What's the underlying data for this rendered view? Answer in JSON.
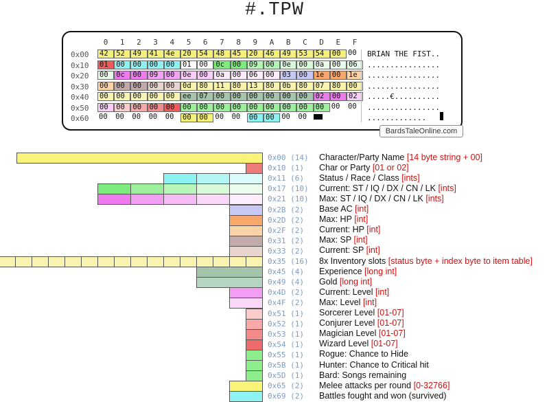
{
  "title": "#.TPW",
  "hex": {
    "col_headers": [
      "0",
      "1",
      "2",
      "3",
      "4",
      "5",
      "6",
      "7",
      "8",
      "9",
      "A",
      "B",
      "C",
      "D",
      "E",
      "F"
    ],
    "rows": [
      {
        "label": "0x00",
        "bytes": [
          "42",
          "52",
          "49",
          "41",
          "4e",
          "20",
          "54",
          "48",
          "45",
          "20",
          "46",
          "49",
          "53",
          "54",
          "00",
          "00"
        ],
        "ascii": "BRIAN THE FIST.."
      },
      {
        "label": "0x10",
        "bytes": [
          "01",
          "00",
          "00",
          "00",
          "00",
          "01",
          "00",
          "0c",
          "00",
          "09",
          "00",
          "0e",
          "00",
          "0a",
          "00",
          "06"
        ],
        "ascii": "................"
      },
      {
        "label": "0x20",
        "bytes": [
          "00",
          "0c",
          "00",
          "09",
          "00",
          "0e",
          "00",
          "0a",
          "00",
          "06",
          "00",
          "03",
          "00",
          "1e",
          "00",
          "1e"
        ],
        "ascii": "................"
      },
      {
        "label": "0x30",
        "bytes": [
          "00",
          "00",
          "00",
          "00",
          "00",
          "0d",
          "80",
          "11",
          "80",
          "13",
          "80",
          "0b",
          "80",
          "07",
          "80",
          "00"
        ],
        "ascii": "................"
      },
      {
        "label": "0x40",
        "bytes": [
          "00",
          "00",
          "00",
          "00",
          "00",
          "ee",
          "07",
          "00",
          "00",
          "00",
          "00",
          "00",
          "00",
          "02",
          "00",
          "02"
        ],
        "ascii": ".....€.........."
      },
      {
        "label": "0x50",
        "bytes": [
          "00",
          "00",
          "00",
          "00",
          "00",
          "00",
          "00",
          "00",
          "00",
          "00",
          "00",
          "00",
          "00",
          "00",
          "00",
          "00"
        ],
        "ascii": "................"
      },
      {
        "label": "0x60",
        "bytes": [
          "00",
          "00",
          "00",
          "00",
          "00",
          "00",
          "00",
          "00",
          "00",
          "00",
          "00",
          "00",
          "00"
        ],
        "ascii": "............."
      }
    ],
    "byte_colors": [
      [
        "#f5f07a",
        "#f5f07a",
        "#f5f07a",
        "#f5f07a",
        "#f5f07a",
        "#f5f07a",
        "#f5f07a",
        "#f5f07a",
        "#f5f07a",
        "#f5f07a",
        "#f5f07a",
        "#f5f07a",
        "#f5f07a",
        "#f5f07a",
        "#f5f07a",
        ""
      ],
      [
        "#ef5a5a",
        "#8ff2f2",
        "#8ff2f2",
        "#8ff2f2",
        "#8ff2f2",
        "#ffffff",
        "#ffffff",
        "#7dea7d",
        "#7dea7d",
        "#b3f3b3",
        "#b3f3b3",
        "#d8f8d8",
        "#d8f8d8",
        "#ebfbeb",
        "#ebfbeb",
        "#ebfbeb"
      ],
      [
        "#ebfbeb",
        "#ee7bee",
        "#ee7bee",
        "#f4a4f4",
        "#f4a4f4",
        "#f8cef8",
        "#f8cef8",
        "#fcecfc",
        "#fcecfc",
        "#fcecfc",
        "#fcecfc",
        "#c8c8f5",
        "#c8c8f5",
        "#f8a86b",
        "#f8a86b",
        "#fbd3a8"
      ],
      [
        "#fbd3a8",
        "#c3aaaa",
        "#c3aaaa",
        "#e8d5cf",
        "#e8d5cf",
        "#f8f4b0",
        "#f8f4b0",
        "#f8f4b0",
        "#f8f4b0",
        "#f8f4b0",
        "#f8f4b0",
        "#f8f4b0",
        "#f8f4b0",
        "#f8f4b0",
        "#f8f4b0",
        "#f8f4b0"
      ],
      [
        "#f8f4b0",
        "#f8f4b0",
        "#f8f4b0",
        "#f8f4b0",
        "#f8f4b0",
        "#a4c4ac",
        "#a4c4ac",
        "#a4c4ac",
        "#a4c4ac",
        "#a4c4ac",
        "#a4c4ac",
        "#a4c4ac",
        "#a4c4ac",
        "#ee7bee",
        "#ee7bee",
        "#f8cef8"
      ],
      [
        "#f8cef8",
        "#fccbcb",
        "#f8a8a8",
        "#f48b8b",
        "#ef5a5a",
        "#9cf09c",
        "#9cf09c",
        "#9cf09c",
        "#9cf09c",
        "#9cf09c",
        "#9cf09c",
        "#9cf09c",
        "#9cf09c",
        "#9cf09c",
        "",
        ""
      ],
      [
        "",
        "",
        "",
        "",
        "",
        "#f5f07a",
        "#f5f07a",
        "",
        "",
        "#8ff2f2",
        "#8ff2f2",
        "",
        ""
      ]
    ],
    "site_badge": "BardsTaleOnline.com"
  },
  "fields": [
    {
      "offset": "0x00",
      "length": "(14)",
      "label": "Character/Party Name",
      "tag": "[14 byte string + 00]",
      "color": "#f8f47a",
      "cells": 1,
      "cell_width": 358
    },
    {
      "offset": "0x10",
      "length": "(1)",
      "label": "Char or Party",
      "tag": "[01 or 02]",
      "color": "#ef7a7a",
      "cells": 1,
      "cell_width": 24
    },
    {
      "offset": "0x11",
      "length": "(6)",
      "label": "Status / Race / Class",
      "tag": "[ints]",
      "color": "#8ff2f2",
      "cells": 3,
      "cell_width": 48,
      "colors": [
        "#8ff2f2",
        "#b4f6f6",
        "#dcfcfc"
      ]
    },
    {
      "offset": "0x17",
      "length": "(10)",
      "label": "Current: ST / IQ / DX / CN / LK",
      "tag": "[ints]",
      "color": "#7dea7d",
      "cells": 5,
      "cell_width": 48,
      "colors": [
        "#7dea7d",
        "#9cf09c",
        "#b8f5b8",
        "#d8f9d8",
        "#ecfcec"
      ]
    },
    {
      "offset": "0x21",
      "length": "(10)",
      "label": "Max: ST / IQ / DX / CN / LK",
      "tag": "[ints]",
      "color": "#ee7bee",
      "cells": 5,
      "cell_width": 48,
      "colors": [
        "#ee7bee",
        "#f29ef2",
        "#f6bcf6",
        "#f9d7f9",
        "#fcecfc"
      ]
    },
    {
      "offset": "0x2B",
      "length": "(2)",
      "label": "Base AC",
      "tag": "[int]",
      "color": "#c8c8f5",
      "cells": 1,
      "cell_width": 48
    },
    {
      "offset": "0x2D",
      "length": "(2)",
      "label": "Max: HP",
      "tag": "[int]",
      "color": "#f8a86b",
      "cells": 1,
      "cell_width": 48
    },
    {
      "offset": "0x2F",
      "length": "(2)",
      "label": "Current: HP",
      "tag": "[int]",
      "color": "#fbd3a8",
      "cells": 1,
      "cell_width": 48
    },
    {
      "offset": "0x31",
      "length": "(2)",
      "label": "Max: SP",
      "tag": "[int]",
      "color": "#c3aaaa",
      "cells": 1,
      "cell_width": 48
    },
    {
      "offset": "0x33",
      "length": "(2)",
      "label": "Current: SP",
      "tag": "[int]",
      "color": "#e8d5cf",
      "cells": 1,
      "cell_width": 48
    },
    {
      "offset": "0x35",
      "length": "(16)",
      "label": "8x Inventory slots",
      "tag": "[status byte + index byte to item table]",
      "color": "#f8f4b0",
      "cells": 16,
      "cell_width": 24
    },
    {
      "offset": "0x45",
      "length": "(4)",
      "label": "Experience",
      "tag": "[long int]",
      "color": "#a4c4ac",
      "cells": 1,
      "cell_width": 96
    },
    {
      "offset": "0x49",
      "length": "(4)",
      "label": "Gold",
      "tag": "[long int]",
      "color": "#b6d4c2",
      "cells": 1,
      "cell_width": 96
    },
    {
      "offset": "0x4D",
      "length": "(2)",
      "label": "Current: Level",
      "tag": "[int]",
      "color": "#f29ef2",
      "cells": 1,
      "cell_width": 48
    },
    {
      "offset": "0x4F",
      "length": "(2)",
      "label": "Max: Level",
      "tag": "[int]",
      "color": "#f9d7f9",
      "cells": 1,
      "cell_width": 48
    },
    {
      "offset": "0x51",
      "length": "(1)",
      "label": "Sorcerer Level",
      "tag": "[01-07]",
      "color": "#fccbcb",
      "cells": 1,
      "cell_width": 24
    },
    {
      "offset": "0x52",
      "length": "(1)",
      "label": "Conjurer Level",
      "tag": "[01-07]",
      "color": "#f8a8a8",
      "cells": 1,
      "cell_width": 24
    },
    {
      "offset": "0x53",
      "length": "(1)",
      "label": "Magician Level",
      "tag": "[01-07]",
      "color": "#f48b8b",
      "cells": 1,
      "cell_width": 24
    },
    {
      "offset": "0x54",
      "length": "(1)",
      "label": "Wizard Level",
      "tag": "[01-07]",
      "color": "#ef6b6b",
      "cells": 1,
      "cell_width": 24
    },
    {
      "offset": "0x55",
      "length": "(1)",
      "label": "Rogue: Chance to Hide",
      "tag": "",
      "color": "#8cef8c",
      "cells": 1,
      "cell_width": 24
    },
    {
      "offset": "0x5B",
      "length": "(1)",
      "label": "Hunter: Chance to Critical hit",
      "tag": "",
      "color": "#8cef8c",
      "cells": 1,
      "cell_width": 24
    },
    {
      "offset": "0x5D",
      "length": "(1)",
      "label": "Bard: Songs remaining",
      "tag": "",
      "color": "#8cef8c",
      "cells": 1,
      "cell_width": 24
    },
    {
      "offset": "0x65",
      "length": "(2)",
      "label": "Melee attacks per round",
      "tag": "[0-32766]",
      "color": "#f8f47a",
      "cells": 1,
      "cell_width": 48
    },
    {
      "offset": "0x69",
      "length": "(2)",
      "label": "Battles fought and won (survived)",
      "tag": "",
      "color": "#8ff2f2",
      "cells": 1,
      "cell_width": 48
    }
  ]
}
